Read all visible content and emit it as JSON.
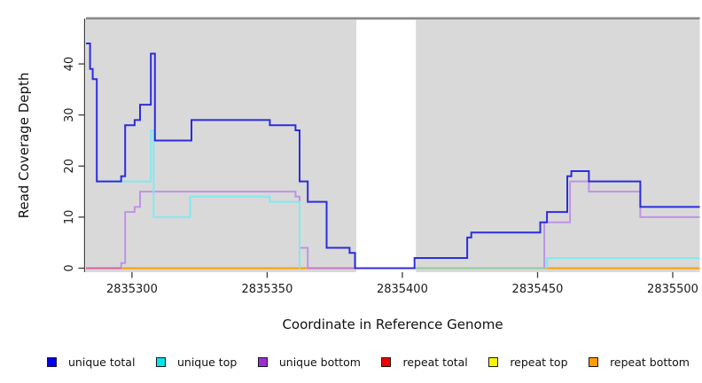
{
  "figure": {
    "background": "#ffffff",
    "panel_color": "#d9d9d9",
    "panel_top_border_color": "#8c8c8c",
    "axis_color": "#3c3c3c",
    "tick_label_color": "#1a1a1a"
  },
  "chart_data": {
    "type": "line",
    "subtype": "step",
    "title": "",
    "xlabel": "Coordinate in Reference Genome",
    "ylabel": "Read Coverage Depth",
    "xlim": [
      2835283,
      2835510
    ],
    "ylim": [
      0,
      49
    ],
    "x_ticks": [
      2835300,
      2835350,
      2835400,
      2835450,
      2835500
    ],
    "y_ticks": [
      0,
      10,
      20,
      30,
      40
    ],
    "grid": false,
    "legend_position": "bottom",
    "masked_region": {
      "from": 2835383,
      "to": 2835405,
      "color": "#ffffff"
    },
    "series": [
      {
        "name": "unique total",
        "line_color": "#2c2cdf",
        "swatch_color": "#0000ee",
        "segments": [
          [
            [
              2835283,
              44
            ],
            [
              2835284.5,
              39
            ],
            [
              2835285.5,
              37
            ],
            [
              2835287,
              17
            ],
            [
              2835296,
              18
            ],
            [
              2835297.5,
              28
            ],
            [
              2835301,
              29
            ],
            [
              2835303,
              32
            ],
            [
              2835307,
              42
            ],
            [
              2835308.5,
              25
            ],
            [
              2835322,
              29
            ],
            [
              2835351,
              28
            ],
            [
              2835360.5,
              27
            ],
            [
              2835362,
              17
            ],
            [
              2835365,
              13
            ],
            [
              2835372,
              4
            ],
            [
              2835380.5,
              3
            ],
            [
              2835382.5,
              0
            ],
            [
              2835404.5,
              2
            ],
            [
              2835424,
              6
            ],
            [
              2835425.5,
              7
            ],
            [
              2835451,
              9
            ],
            [
              2835453.5,
              11
            ],
            [
              2835461,
              18
            ],
            [
              2835462.5,
              19
            ],
            [
              2835469,
              17
            ],
            [
              2835488,
              12
            ],
            [
              2835510,
              12
            ]
          ]
        ]
      },
      {
        "name": "unique top",
        "line_color": "#82e9ef",
        "swatch_color": "#00e5ee",
        "segments": [
          [
            [
              2835287,
              17
            ],
            [
              2835307,
              27
            ],
            [
              2835308,
              10
            ],
            [
              2835321.5,
              14
            ],
            [
              2835351,
              13
            ],
            [
              2835362,
              0
            ]
          ],
          [
            [
              2835453.5,
              0
            ],
            [
              2835453.5,
              2
            ],
            [
              2835510,
              2
            ]
          ]
        ]
      },
      {
        "name": "unique bottom",
        "line_color": "#bf93e4",
        "swatch_color": "#9c2fd0",
        "segments": [
          [
            [
              2835283,
              0
            ],
            [
              2835296,
              1
            ],
            [
              2835297.5,
              11
            ],
            [
              2835301,
              12
            ],
            [
              2835303,
              15
            ],
            [
              2835360.5,
              14
            ],
            [
              2835362,
              4
            ],
            [
              2835365,
              0
            ],
            [
              2835452.5,
              9
            ],
            [
              2835462,
              17
            ],
            [
              2835469,
              15
            ],
            [
              2835488,
              10
            ],
            [
              2835510,
              10
            ]
          ]
        ]
      },
      {
        "name": "repeat total",
        "line_color": "#dd3333",
        "swatch_color": "#ee0000",
        "segments": [
          [
            [
              2835283,
              0
            ],
            [
              2835510,
              0
            ]
          ]
        ]
      },
      {
        "name": "repeat top",
        "line_color": "#f0f000",
        "swatch_color": "#f5f500",
        "segments": [
          [
            [
              2835283,
              0
            ],
            [
              2835510,
              0
            ]
          ]
        ]
      },
      {
        "name": "repeat bottom",
        "line_color": "#ff9d00",
        "swatch_color": "#ff9d00",
        "segments": [
          [
            [
              2835283,
              0
            ],
            [
              2835510,
              0
            ]
          ]
        ]
      }
    ],
    "overlap_tints": [
      {
        "color": "#d4629c",
        "from": 2835283,
        "to": 2835296,
        "value": 0
      },
      {
        "color": "#c878c8",
        "from": 2835365,
        "to": 2835382.5,
        "value": 0
      },
      {
        "color": "#93cb99",
        "from": 2835405,
        "to": 2835453,
        "value": 0
      }
    ]
  }
}
